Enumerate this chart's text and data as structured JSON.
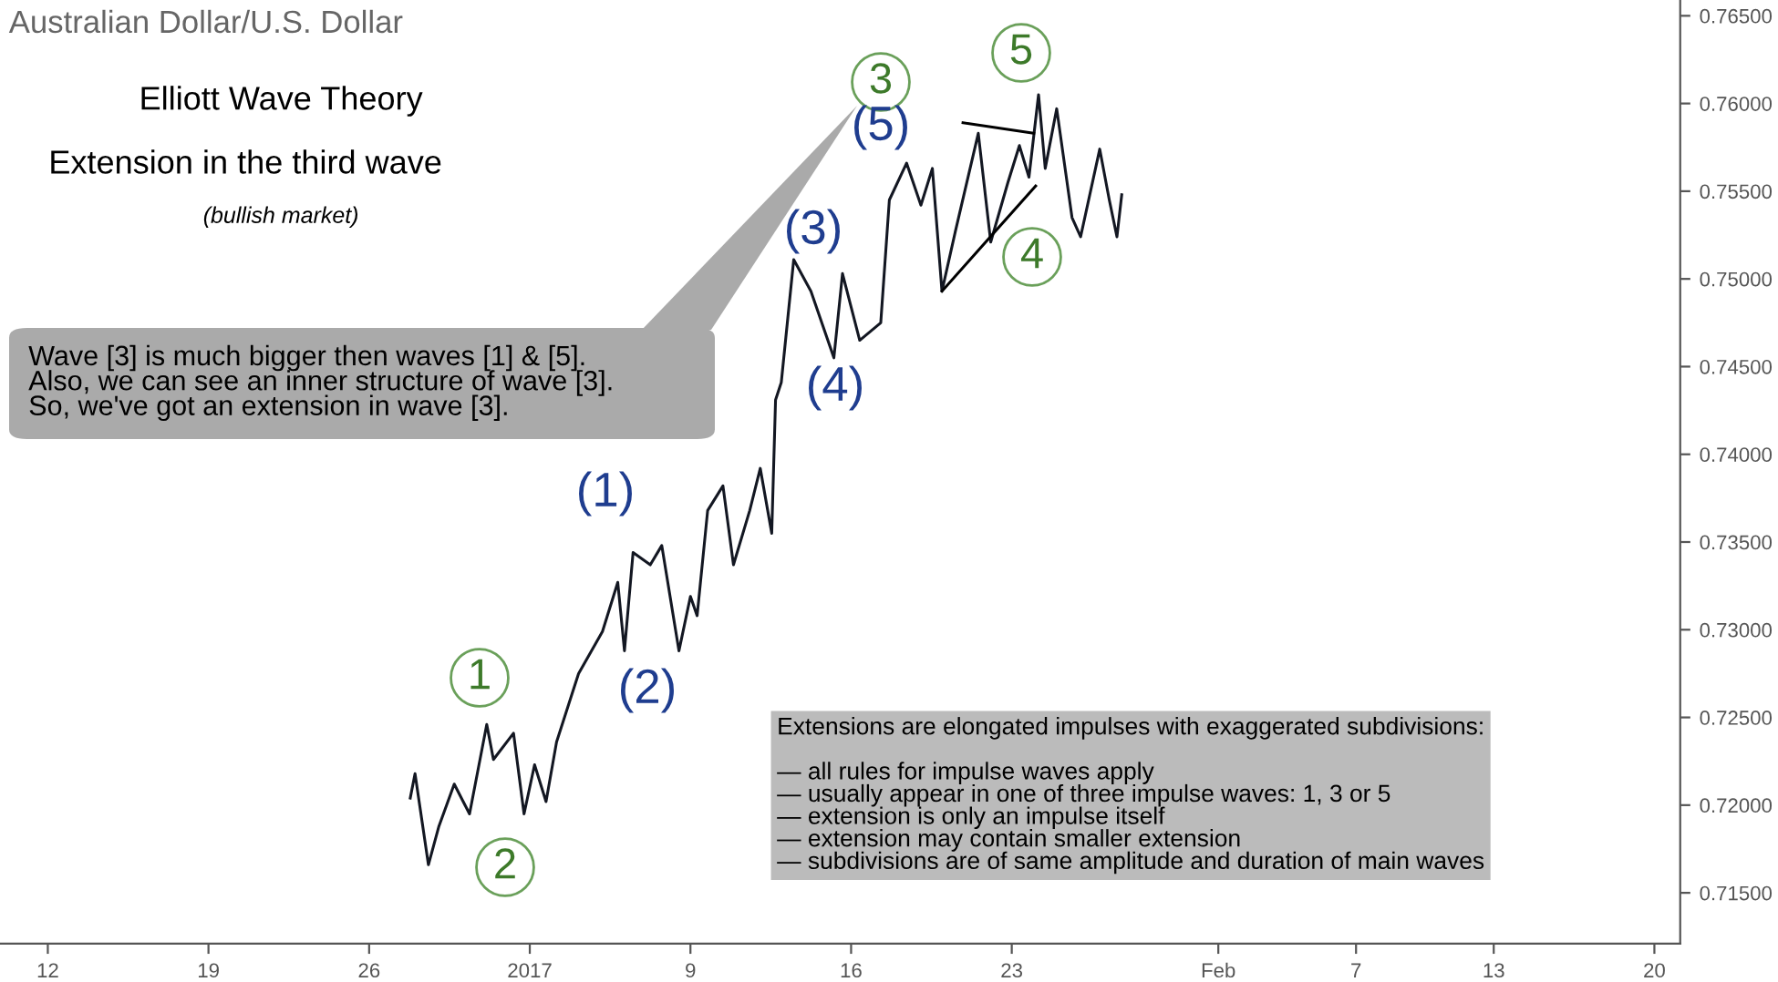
{
  "chart_data": {
    "type": "line",
    "title": "Australian Dollar/U.S. Dollar",
    "annotations": [
      "Elliott Wave Theory",
      "Extension in the third wave",
      "(bullish market)",
      "Wave [3] is much bigger then waves [1] & [5].\nAlso, we can see an inner structure of wave [3].\nSo, we've got an extension in wave [3].",
      "Extensions are elongated impulses with exaggerated subdivisions:\n\n— all rules for impulse waves apply\n— usually appear in one of three impulse waves: 1, 3 or 5\n— extension is only an impulse itself\n— extension may contain smaller extension\n— subdivisions are of same amplitude and duration of main waves",
      "1",
      "2",
      "3",
      "4",
      "5",
      "(1)",
      "(2)",
      "(3)",
      "(4)",
      "(5)"
    ],
    "series": [
      {
        "color": "#131722",
        "x": [
          "2016-12-27T19:00",
          "2016-12-28T00:00",
          "2016-12-28T14:00",
          "2016-12-29T01:00",
          "2016-12-29T17:00",
          "2016-12-30T09:00",
          "2016-12-31T03:00",
          "2016-12-31T10:00",
          "2017-01-01T07:00",
          "2017-01-01T18:00",
          "2017-01-02T05:00",
          "2017-01-02T17:00",
          "2017-01-03T04:00",
          "2017-01-04T03:00",
          "2017-01-05T04:00",
          "2017-01-05T20:00",
          "2017-01-06T03:00",
          "2017-01-06T12:00",
          "2017-01-07T06:00",
          "2017-01-07T18:00",
          "2017-01-08T12:00",
          "2017-01-09T00:00",
          "2017-01-09T07:00",
          "2017-01-09T18:00",
          "2017-01-10T10:00",
          "2017-01-10T21:00",
          "2017-01-11T14:00",
          "2017-01-12T01:00",
          "2017-01-12T13:00",
          "2017-01-12T17:00",
          "2017-01-12T23:00",
          "2017-01-13T12:00",
          "2017-01-14T06:00",
          "2017-01-15T06:00",
          "2017-01-15T15:00",
          "2017-01-16T09:00",
          "2017-01-17T07:00",
          "2017-01-17T16:00",
          "2017-01-18T10:00",
          "2017-01-19T01:00",
          "2017-01-19T13:00",
          "2017-01-19T23:00",
          "2017-01-20T13:00",
          "2017-01-21T13:00",
          "2017-01-22T02:00",
          "2017-01-22T20:00",
          "2017-01-23T08:00",
          "2017-01-23T18:00",
          "2017-01-24T04:00",
          "2017-01-24T11:00",
          "2017-01-24T23:00",
          "2017-01-25T15:00",
          "2017-01-26T00:00",
          "2017-01-26T20:00",
          "2017-01-27T06:00",
          "2017-01-27T14:00",
          "2017-01-27T19:00"
        ],
        "values": [
          0.7204,
          0.7218,
          0.7166,
          0.7188,
          0.7212,
          0.7195,
          0.7246,
          0.7226,
          0.7241,
          0.7195,
          0.7223,
          0.7202,
          0.7236,
          0.7275,
          0.7299,
          0.7327,
          0.7288,
          0.7344,
          0.7337,
          0.7348,
          0.7288,
          0.7319,
          0.7308,
          0.7368,
          0.7382,
          0.7337,
          0.7368,
          0.7392,
          0.7355,
          0.7431,
          0.7441,
          0.7511,
          0.7493,
          0.7455,
          0.7503,
          0.7465,
          0.7475,
          0.7545,
          0.7566,
          0.7542,
          0.7563,
          0.7493,
          0.7527,
          0.7583,
          0.7521,
          0.7555,
          0.7576,
          0.7558,
          0.7605,
          0.7563,
          0.7597,
          0.7535,
          0.7524,
          0.7574,
          0.7545,
          0.7524,
          0.7548
        ]
      },
      {
        "color": "#000000",
        "x": [
          "2017-01-20T21:00",
          "2017-01-23T23:00"
        ],
        "values": [
          0.7589,
          0.7583
        ]
      },
      {
        "color": "#000000",
        "x": [
          "2017-01-19T23:00",
          "2017-01-24T01:00"
        ],
        "values": [
          0.7493,
          0.7553
        ]
      }
    ],
    "xlim": [
      "2016-12-09T22:00",
      "2017-02-21T03:00"
    ],
    "xticks": [
      {
        "value": "2016-12-12",
        "label": "12"
      },
      {
        "value": "2016-12-19",
        "label": "19"
      },
      {
        "value": "2016-12-26",
        "label": "26"
      },
      {
        "value": "2017-01-02",
        "label": "2017"
      },
      {
        "value": "2017-01-09",
        "label": "9"
      },
      {
        "value": "2017-01-16",
        "label": "16"
      },
      {
        "value": "2017-01-23",
        "label": "23"
      },
      {
        "value": "2017-02-01",
        "label": "Feb"
      },
      {
        "value": "2017-02-07",
        "label": "7"
      },
      {
        "value": "2017-02-13",
        "label": "13"
      },
      {
        "value": "2017-02-20",
        "label": "20"
      }
    ],
    "ylim": [
      0.7121,
      0.7659
    ],
    "yticks": [
      {
        "value": 0.715,
        "label": "0.71500"
      },
      {
        "value": 0.72,
        "label": "0.72000"
      },
      {
        "value": 0.725,
        "label": "0.72500"
      },
      {
        "value": 0.73,
        "label": "0.73000"
      },
      {
        "value": 0.735,
        "label": "0.73500"
      },
      {
        "value": 0.74,
        "label": "0.74000"
      },
      {
        "value": 0.745,
        "label": "0.74500"
      },
      {
        "value": 0.75,
        "label": "0.75000"
      },
      {
        "value": 0.755,
        "label": "0.75500"
      },
      {
        "value": 0.76,
        "label": "0.76000"
      },
      {
        "value": 0.765,
        "label": "0.76500"
      }
    ],
    "grid": false,
    "legend": false
  }
}
